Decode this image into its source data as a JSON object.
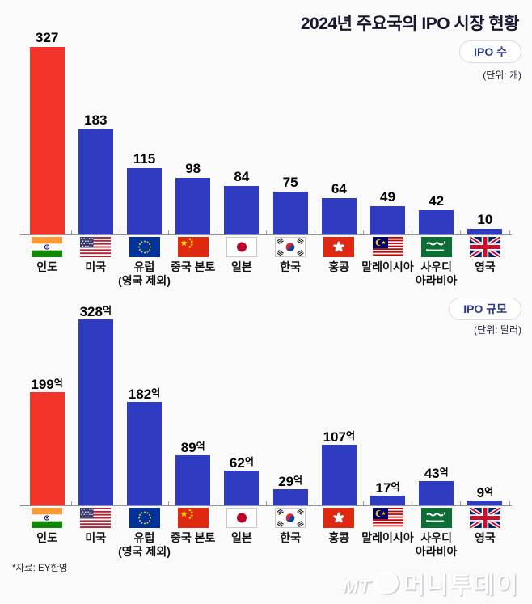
{
  "title": "2024년 주요국의 IPO 시장 현황",
  "source": "*자료: EY한영",
  "watermark": {
    "mt": "MT",
    "name": "머니투데이"
  },
  "colors": {
    "highlight_bar": "#f4332b",
    "bar": "#2f3cc1",
    "badge_text": "#2b3a8f",
    "background": "#fafafb",
    "axis": "#8f8f96"
  },
  "countries": [
    {
      "name": "인도",
      "lines": [
        "인도"
      ],
      "flag": "india"
    },
    {
      "name": "미국",
      "lines": [
        "미국"
      ],
      "flag": "usa"
    },
    {
      "name": "유럽 (영국 제외)",
      "lines": [
        "유럽",
        "(영국 제외)"
      ],
      "flag": "eu"
    },
    {
      "name": "중국 본토",
      "lines": [
        "중국 본토"
      ],
      "flag": "china"
    },
    {
      "name": "일본",
      "lines": [
        "일본"
      ],
      "flag": "japan"
    },
    {
      "name": "한국",
      "lines": [
        "한국"
      ],
      "flag": "korea"
    },
    {
      "name": "홍콩",
      "lines": [
        "홍콩"
      ],
      "flag": "hongkong"
    },
    {
      "name": "말레이시아",
      "lines": [
        "말레이시아"
      ],
      "flag": "malaysia"
    },
    {
      "name": "사우디아라비아",
      "lines": [
        "사우디",
        "아라비아"
      ],
      "flag": "saudi"
    },
    {
      "name": "영국",
      "lines": [
        "영국"
      ],
      "flag": "uk"
    }
  ],
  "chart_data": [
    {
      "type": "bar",
      "badge": "IPO 수",
      "unit": "(단위: 개)",
      "value_suffix": "",
      "categories": [
        "인도",
        "미국",
        "유럽 (영국 제외)",
        "중국 본토",
        "일본",
        "한국",
        "홍콩",
        "말레이시아",
        "사우디아라비아",
        "영국"
      ],
      "values": [
        327,
        183,
        115,
        98,
        84,
        75,
        64,
        49,
        42,
        10
      ],
      "highlight_index": 0,
      "highlight_color": "#f4332b",
      "bar_color": "#2f3cc1",
      "ylim": [
        0,
        327
      ],
      "grid": false,
      "legend": "none"
    },
    {
      "type": "bar",
      "badge": "IPO 규모",
      "unit": "(단위: 달러)",
      "value_suffix": "억",
      "categories": [
        "인도",
        "미국",
        "유럽 (영국 제외)",
        "중국 본토",
        "일본",
        "한국",
        "홍콩",
        "말레이시아",
        "사우디아라비아",
        "영국"
      ],
      "values": [
        199,
        328,
        182,
        89,
        62,
        29,
        107,
        17,
        43,
        9
      ],
      "highlight_index": 0,
      "highlight_color": "#f4332b",
      "bar_color": "#2f3cc1",
      "ylim": [
        0,
        328
      ],
      "grid": false,
      "legend": "none"
    }
  ]
}
